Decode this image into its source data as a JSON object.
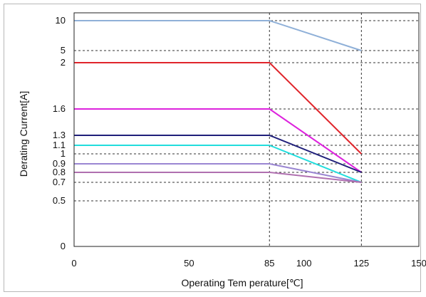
{
  "chart_data": {
    "type": "line",
    "title": "",
    "xlabel": "Operating Tem perature[℃]",
    "ylabel": "Derating Current[A]",
    "xlim": [
      0,
      150
    ],
    "x_ticks": [
      {
        "value": 0,
        "label": "0"
      },
      {
        "value": 50,
        "label": "50"
      },
      {
        "value": 85,
        "label": "85"
      },
      {
        "value": 100,
        "label": "100"
      },
      {
        "value": 125,
        "label": "125"
      },
      {
        "value": 150,
        "label": "150"
      }
    ],
    "y_ticks": [
      {
        "value": 0,
        "label": "0"
      },
      {
        "value": 0.5,
        "label": "0.5"
      },
      {
        "value": 0.7,
        "label": "0.7"
      },
      {
        "value": 0.8,
        "label": "0.8"
      },
      {
        "value": 0.9,
        "label": "0.9"
      },
      {
        "value": 1,
        "label": "1"
      },
      {
        "value": 1.1,
        "label": "1.1"
      },
      {
        "value": 1.3,
        "label": "1.3"
      },
      {
        "value": 1.6,
        "label": "1.6"
      },
      {
        "value": 2,
        "label": "2"
      },
      {
        "value": 5,
        "label": "5"
      },
      {
        "value": 10,
        "label": "10"
      }
    ],
    "x_dashed_gridlines": [
      85,
      125
    ],
    "y_dashed_gridlines": [
      0.5,
      0.7,
      0.8,
      0.9,
      1,
      1.1,
      1.3,
      1.6,
      2,
      5,
      10
    ],
    "series": [
      {
        "color": "#8fb0d8",
        "x": [
          0,
          85,
          125
        ],
        "y": [
          10,
          10,
          5
        ]
      },
      {
        "color": "#e0252b",
        "x": [
          0,
          85,
          125
        ],
        "y": [
          2,
          2,
          1
        ]
      },
      {
        "color": "#dd22dd",
        "x": [
          0,
          85,
          125
        ],
        "y": [
          1.6,
          1.6,
          0.8
        ]
      },
      {
        "color": "#1f1f7a",
        "x": [
          0,
          85,
          125
        ],
        "y": [
          1.3,
          1.3,
          0.8
        ]
      },
      {
        "color": "#22dddd",
        "x": [
          0,
          85,
          125
        ],
        "y": [
          1.1,
          1.1,
          0.7
        ]
      },
      {
        "color": "#9a86d2",
        "x": [
          0,
          85,
          125
        ],
        "y": [
          0.9,
          0.9,
          0.7
        ]
      },
      {
        "color": "#b070b0",
        "x": [
          0,
          85,
          125
        ],
        "y": [
          0.8,
          0.8,
          0.7
        ]
      }
    ]
  }
}
